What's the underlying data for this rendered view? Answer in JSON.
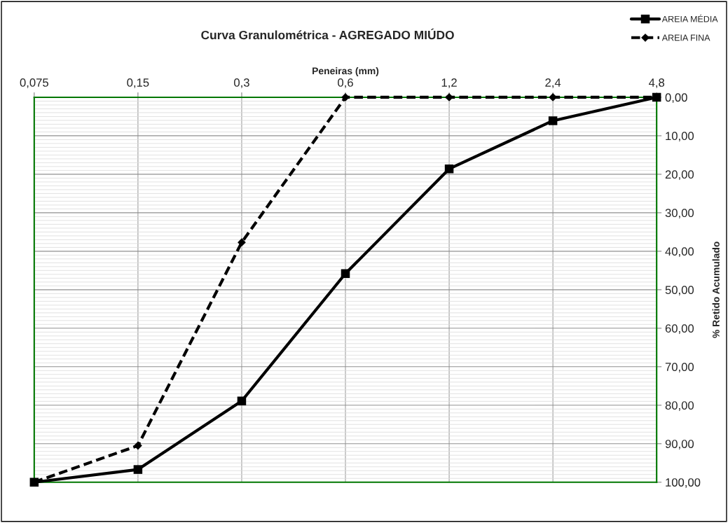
{
  "chart_data": {
    "type": "line",
    "title": "Curva Granulométrica - AGREGADO MIÚDO",
    "xlabel": "Peneiras (mm)",
    "ylabel": "% Retido Acumulado",
    "categories": [
      "0,075",
      "0,15",
      "0,3",
      "0,6",
      "1,2",
      "2,4",
      "4,8"
    ],
    "series": [
      {
        "name": "AREIA MÉDIA",
        "color": "#000000",
        "marker": "square",
        "line_style": "solid",
        "values": [
          100,
          96.7,
          78.9,
          45.8,
          18.6,
          6.1,
          0
        ]
      },
      {
        "name": "AREIA FINA",
        "color": "#000000",
        "marker": "diamond",
        "line_style": "dashed",
        "values": [
          100,
          90.5,
          37.7,
          0,
          0,
          0,
          0
        ]
      }
    ],
    "ylim": [
      100,
      0
    ],
    "yticks": [
      {
        "value": 0,
        "label": "0,00"
      },
      {
        "value": 10,
        "label": "10,00"
      },
      {
        "value": 20,
        "label": "20,00"
      },
      {
        "value": 30,
        "label": "30,00"
      },
      {
        "value": 40,
        "label": "40,00"
      },
      {
        "value": 50,
        "label": "50,00"
      },
      {
        "value": 60,
        "label": "60,00"
      },
      {
        "value": 70,
        "label": "70,00"
      },
      {
        "value": 80,
        "label": "80,00"
      },
      {
        "value": 90,
        "label": "90,00"
      },
      {
        "value": 100,
        "label": "100,00"
      }
    ],
    "grid": true,
    "legend": "top right"
  }
}
